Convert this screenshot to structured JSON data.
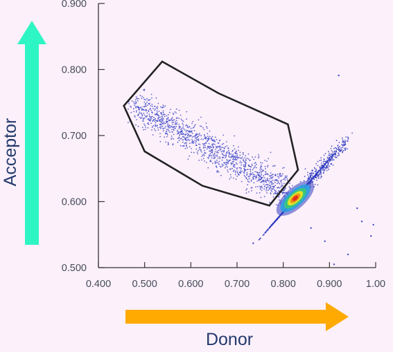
{
  "chart_data": {
    "type": "scatter",
    "title": "",
    "xlabel": "Donor",
    "ylabel": "Acceptor",
    "xlim": [
      0.4,
      1.0
    ],
    "ylim": [
      0.5,
      0.9
    ],
    "x_ticks": [
      "0.400",
      "0.500",
      "0.600",
      "0.700",
      "0.800",
      "0.900",
      "1.00"
    ],
    "y_ticks": [
      "0.500",
      "0.600",
      "0.700",
      "0.800",
      "0.900"
    ],
    "grid": false,
    "legend": "none",
    "gate_polygon": [
      [
        0.538,
        0.812
      ],
      [
        0.66,
        0.764
      ],
      [
        0.81,
        0.717
      ],
      [
        0.832,
        0.648
      ],
      [
        0.77,
        0.594
      ],
      [
        0.625,
        0.624
      ],
      [
        0.5,
        0.676
      ],
      [
        0.455,
        0.745
      ]
    ],
    "clusters": [
      {
        "name": "",
        "center": [
          0.66,
          0.675
        ],
        "x_range": [
          0.46,
          0.82
        ],
        "y_range": [
          0.6,
          0.765
        ],
        "orientation": "diagonal-downward",
        "point_color": "#3d4bc8"
      },
      {
        "name": "",
        "center": [
          0.826,
          0.605
        ],
        "x_range": [
          0.78,
          0.95
        ],
        "y_range": [
          0.57,
          0.7
        ],
        "orientation": "diagonal-upward",
        "density_colormap": [
          "#3340c0",
          "#2aa0e0",
          "#3cc874",
          "#f2e622",
          "#f08a14",
          "#e02818"
        ]
      }
    ],
    "outliers": [
      [
        0.92,
        0.791
      ],
      [
        0.735,
        0.537
      ],
      [
        0.91,
        0.505
      ],
      [
        0.97,
        0.57
      ],
      [
        0.995,
        0.565
      ],
      [
        0.94,
        0.52
      ],
      [
        0.86,
        0.56
      ],
      [
        0.89,
        0.54
      ],
      [
        0.99,
        0.548
      ],
      [
        0.96,
        0.59
      ]
    ],
    "arrow_colors": {
      "acceptor_arrow": "#2ef5c4",
      "donor_arrow": "#ffaa00"
    }
  }
}
